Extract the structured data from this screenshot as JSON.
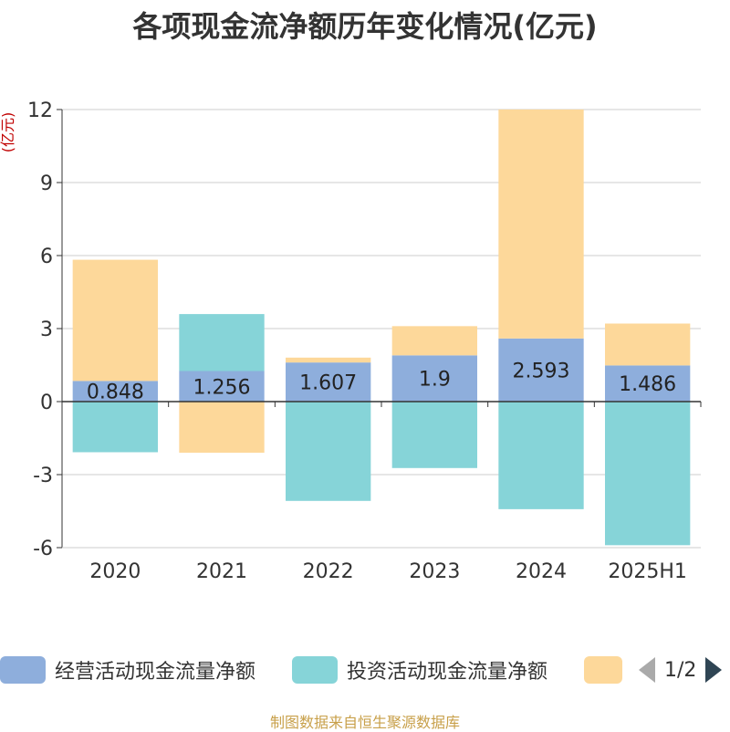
{
  "title": "各项现金流净额历年变化情况(亿元)",
  "unit": "(亿元)",
  "source": "制图数据来自恒生聚源数据库",
  "legend": {
    "pager": "1/2"
  },
  "colors": {
    "operating": "#8eaedc",
    "investing": "#86d4d8",
    "financing": "#fdd89a",
    "axis": "#333333",
    "grid": "#cccccc"
  },
  "chart_data": {
    "type": "bar",
    "stacked": true,
    "categories": [
      "2020",
      "2021",
      "2022",
      "2023",
      "2024",
      "2025H1"
    ],
    "series": [
      {
        "name": "经营活动现金流量净额",
        "values": [
          0.848,
          1.256,
          1.607,
          1.9,
          2.593,
          1.486
        ],
        "color": "#8eaedc",
        "show_labels": true
      },
      {
        "name": "投资活动现金流量净额",
        "values": [
          -2.08,
          2.34,
          -4.08,
          -2.73,
          -4.42,
          -5.9
        ],
        "color": "#86d4d8",
        "show_labels": false
      },
      {
        "name": "",
        "values": [
          4.98,
          -2.1,
          0.2,
          1.2,
          9.41,
          1.72
        ],
        "color": "#fdd89a",
        "show_labels": false
      }
    ],
    "yticks": [
      12,
      9,
      6,
      3,
      0,
      -3,
      -6
    ],
    "ylim": [
      -6,
      12
    ],
    "grid": true,
    "legend_position": "bottom"
  }
}
